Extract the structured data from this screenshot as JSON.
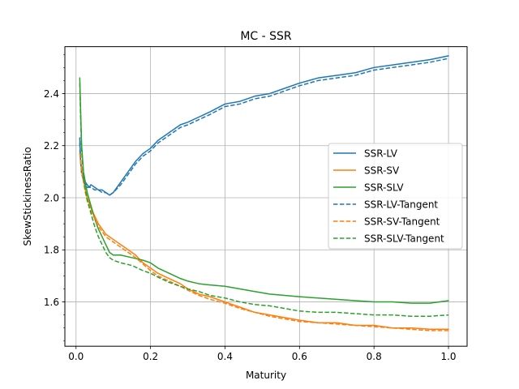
{
  "chart_data": {
    "type": "line",
    "title": "MC - SSR",
    "xlabel": "Maturity",
    "ylabel": "SkewStickinessRatio",
    "xlim": [
      -0.03,
      1.05
    ],
    "ylim": [
      1.43,
      2.58
    ],
    "xticks": [
      0.0,
      0.2,
      0.4,
      0.6,
      0.8,
      1.0
    ],
    "xtick_labels": [
      "0.0",
      "0.2",
      "0.4",
      "0.6",
      "0.8",
      "1.0"
    ],
    "yticks": [
      1.6,
      1.8,
      2.0,
      2.2,
      2.4
    ],
    "ytick_labels": [
      "1.6",
      "1.8",
      "2.0",
      "2.2",
      "2.4"
    ],
    "grid": true,
    "legend_position": "center-right",
    "series": [
      {
        "name": "SSR-LV",
        "color": "#1f77b4",
        "style": "solid",
        "x": [
          0.01,
          0.012,
          0.015,
          0.02,
          0.025,
          0.03,
          0.035,
          0.04,
          0.05,
          0.06,
          0.07,
          0.08,
          0.09,
          0.1,
          0.12,
          0.14,
          0.16,
          0.18,
          0.2,
          0.22,
          0.25,
          0.28,
          0.3,
          0.33,
          0.36,
          0.4,
          0.44,
          0.48,
          0.52,
          0.56,
          0.6,
          0.65,
          0.7,
          0.75,
          0.8,
          0.85,
          0.9,
          0.95,
          1.0
        ],
        "y": [
          2.23,
          2.15,
          2.1,
          2.08,
          2.06,
          2.05,
          2.04,
          2.05,
          2.04,
          2.03,
          2.03,
          2.02,
          2.01,
          2.02,
          2.06,
          2.1,
          2.14,
          2.17,
          2.19,
          2.22,
          2.25,
          2.28,
          2.29,
          2.31,
          2.33,
          2.36,
          2.37,
          2.39,
          2.4,
          2.42,
          2.44,
          2.46,
          2.47,
          2.48,
          2.5,
          2.51,
          2.52,
          2.53,
          2.545
        ]
      },
      {
        "name": "SSR-SV",
        "color": "#ff7f0e",
        "style": "solid",
        "x": [
          0.01,
          0.012,
          0.015,
          0.02,
          0.025,
          0.03,
          0.04,
          0.05,
          0.06,
          0.07,
          0.08,
          0.09,
          0.1,
          0.12,
          0.14,
          0.16,
          0.18,
          0.2,
          0.22,
          0.25,
          0.28,
          0.3,
          0.33,
          0.36,
          0.4,
          0.44,
          0.48,
          0.52,
          0.56,
          0.6,
          0.65,
          0.7,
          0.75,
          0.8,
          0.85,
          0.9,
          0.95,
          1.0
        ],
        "y": [
          2.18,
          2.15,
          2.11,
          2.07,
          2.03,
          2.0,
          1.96,
          1.93,
          1.9,
          1.88,
          1.86,
          1.85,
          1.84,
          1.82,
          1.8,
          1.78,
          1.75,
          1.73,
          1.71,
          1.69,
          1.67,
          1.65,
          1.63,
          1.62,
          1.6,
          1.58,
          1.56,
          1.55,
          1.54,
          1.53,
          1.52,
          1.52,
          1.51,
          1.51,
          1.5,
          1.5,
          1.495,
          1.495
        ]
      },
      {
        "name": "SSR-SLV",
        "color": "#2ca02c",
        "style": "solid",
        "x": [
          0.01,
          0.012,
          0.015,
          0.02,
          0.025,
          0.03,
          0.04,
          0.05,
          0.06,
          0.07,
          0.08,
          0.09,
          0.1,
          0.12,
          0.15,
          0.18,
          0.2,
          0.22,
          0.25,
          0.28,
          0.3,
          0.33,
          0.36,
          0.4,
          0.44,
          0.48,
          0.52,
          0.56,
          0.6,
          0.65,
          0.7,
          0.75,
          0.8,
          0.85,
          0.9,
          0.95,
          1.0
        ],
        "y": [
          2.46,
          2.35,
          2.2,
          2.1,
          2.06,
          2.02,
          1.97,
          1.92,
          1.88,
          1.85,
          1.82,
          1.79,
          1.78,
          1.78,
          1.77,
          1.76,
          1.75,
          1.73,
          1.71,
          1.69,
          1.68,
          1.67,
          1.665,
          1.66,
          1.65,
          1.64,
          1.63,
          1.625,
          1.62,
          1.615,
          1.61,
          1.605,
          1.6,
          1.6,
          1.595,
          1.595,
          1.605
        ]
      },
      {
        "name": "SSR-LV-Tangent",
        "color": "#1f77b4",
        "style": "dashed",
        "x": [
          0.01,
          0.012,
          0.015,
          0.02,
          0.025,
          0.03,
          0.035,
          0.04,
          0.05,
          0.06,
          0.07,
          0.08,
          0.09,
          0.1,
          0.12,
          0.14,
          0.16,
          0.18,
          0.2,
          0.22,
          0.25,
          0.28,
          0.3,
          0.33,
          0.36,
          0.4,
          0.44,
          0.48,
          0.52,
          0.56,
          0.6,
          0.65,
          0.7,
          0.75,
          0.8,
          0.85,
          0.9,
          0.95,
          1.0
        ],
        "y": [
          2.21,
          2.14,
          2.09,
          2.07,
          2.05,
          2.04,
          2.04,
          2.04,
          2.03,
          2.03,
          2.02,
          2.02,
          2.01,
          2.02,
          2.05,
          2.09,
          2.13,
          2.16,
          2.18,
          2.21,
          2.24,
          2.27,
          2.28,
          2.3,
          2.32,
          2.35,
          2.36,
          2.38,
          2.39,
          2.41,
          2.43,
          2.45,
          2.46,
          2.47,
          2.49,
          2.5,
          2.51,
          2.52,
          2.535
        ]
      },
      {
        "name": "SSR-SV-Tangent",
        "color": "#ff7f0e",
        "style": "dashed",
        "x": [
          0.01,
          0.012,
          0.015,
          0.02,
          0.025,
          0.03,
          0.04,
          0.05,
          0.06,
          0.07,
          0.08,
          0.09,
          0.1,
          0.12,
          0.14,
          0.16,
          0.18,
          0.2,
          0.22,
          0.25,
          0.28,
          0.3,
          0.33,
          0.36,
          0.4,
          0.44,
          0.48,
          0.52,
          0.56,
          0.6,
          0.65,
          0.7,
          0.75,
          0.8,
          0.85,
          0.9,
          0.95,
          1.0
        ],
        "y": [
          2.17,
          2.14,
          2.1,
          2.06,
          2.02,
          1.99,
          1.95,
          1.92,
          1.89,
          1.87,
          1.85,
          1.84,
          1.83,
          1.81,
          1.79,
          1.77,
          1.745,
          1.72,
          1.7,
          1.68,
          1.66,
          1.645,
          1.625,
          1.61,
          1.595,
          1.575,
          1.56,
          1.545,
          1.535,
          1.525,
          1.52,
          1.515,
          1.51,
          1.505,
          1.5,
          1.495,
          1.49,
          1.49
        ]
      },
      {
        "name": "SSR-SLV-Tangent",
        "color": "#2ca02c",
        "style": "dashed",
        "x": [
          0.01,
          0.012,
          0.015,
          0.02,
          0.025,
          0.03,
          0.04,
          0.05,
          0.06,
          0.07,
          0.08,
          0.09,
          0.1,
          0.12,
          0.15,
          0.18,
          0.2,
          0.22,
          0.25,
          0.28,
          0.3,
          0.33,
          0.36,
          0.4,
          0.44,
          0.48,
          0.52,
          0.56,
          0.6,
          0.65,
          0.7,
          0.75,
          0.8,
          0.85,
          0.9,
          0.95,
          1.0
        ],
        "y": [
          2.44,
          2.32,
          2.18,
          2.08,
          2.03,
          1.99,
          1.94,
          1.89,
          1.85,
          1.82,
          1.79,
          1.77,
          1.76,
          1.75,
          1.74,
          1.72,
          1.71,
          1.695,
          1.675,
          1.66,
          1.65,
          1.64,
          1.625,
          1.615,
          1.6,
          1.59,
          1.585,
          1.575,
          1.565,
          1.56,
          1.56,
          1.555,
          1.55,
          1.55,
          1.545,
          1.545,
          1.55
        ]
      }
    ]
  }
}
